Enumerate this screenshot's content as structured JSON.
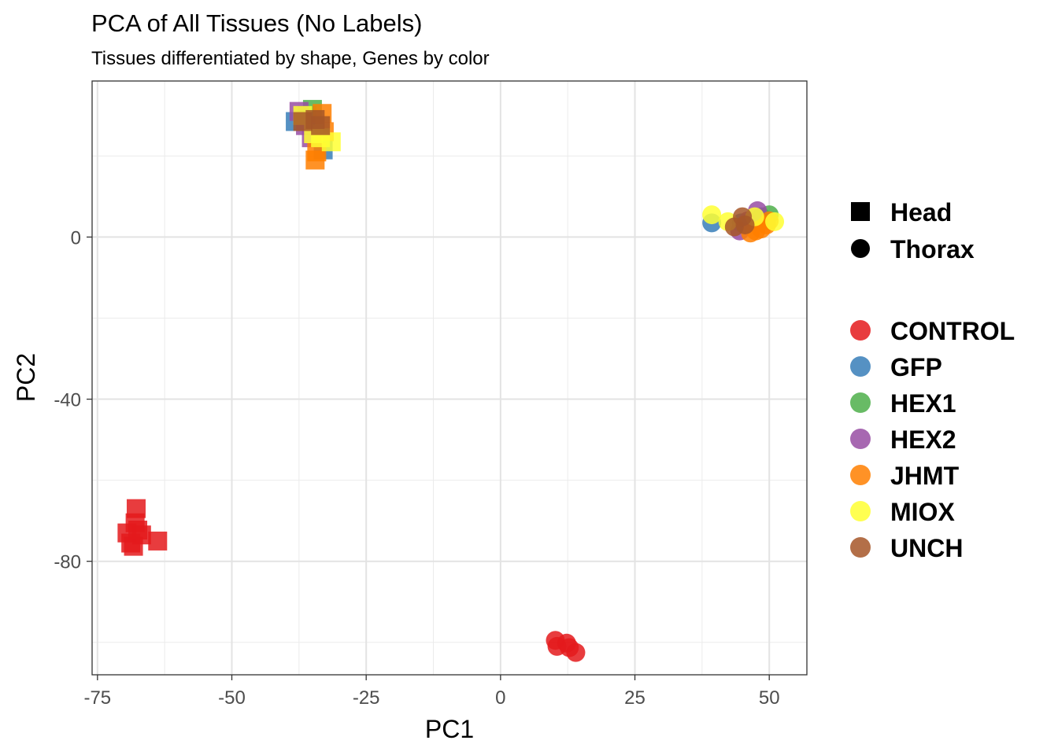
{
  "chart_data": {
    "type": "scatter",
    "title": "PCA of All Tissues (No Labels)",
    "subtitle": "Tissues differentiated by shape, Genes by color",
    "xlabel": "PC1",
    "ylabel": "PC2",
    "xlim": [
      -76,
      57
    ],
    "ylim": [
      -108,
      38.5
    ],
    "x_ticks": [
      -75,
      -50,
      -25,
      0,
      25,
      50
    ],
    "x_tick_labels": [
      "-75",
      "-50",
      "-25",
      "0",
      "25",
      "50"
    ],
    "y_ticks": [
      0,
      -40,
      -80
    ],
    "y_tick_labels": [
      "0",
      "-40",
      "-80"
    ],
    "x_minor_ticks": [
      -62.5,
      -37.5,
      -12.5,
      12.5,
      37.5
    ],
    "y_minor_ticks": [
      20,
      -20,
      -60,
      -100
    ],
    "grid": true,
    "legend_position": "right",
    "shape_legend": [
      {
        "label": "Head",
        "shape": "square"
      },
      {
        "label": "Thorax",
        "shape": "circle"
      }
    ],
    "color_legend": [
      {
        "label": "CONTROL",
        "color": "#E41A1C"
      },
      {
        "label": "GFP",
        "color": "#377EB8"
      },
      {
        "label": "HEX1",
        "color": "#4DAF4A"
      },
      {
        "label": "HEX2",
        "color": "#984EA3"
      },
      {
        "label": "JHMT",
        "color": "#FF7F00"
      },
      {
        "label": "MIOX",
        "color": "#FFFF33"
      },
      {
        "label": "UNCH",
        "color": "#A65628"
      }
    ],
    "points": [
      {
        "x": -69.5,
        "y": -73,
        "tissue": "Head",
        "gene": "CONTROL"
      },
      {
        "x": -67.8,
        "y": -67,
        "tissue": "Head",
        "gene": "CONTROL"
      },
      {
        "x": -68.0,
        "y": -70.5,
        "tissue": "Head",
        "gene": "CONTROL"
      },
      {
        "x": -66.8,
        "y": -73.5,
        "tissue": "Head",
        "gene": "CONTROL"
      },
      {
        "x": -68.8,
        "y": -75.5,
        "tissue": "Head",
        "gene": "CONTROL"
      },
      {
        "x": -68.3,
        "y": -76.3,
        "tissue": "Head",
        "gene": "CONTROL"
      },
      {
        "x": -67.5,
        "y": -72.3,
        "tissue": "Head",
        "gene": "CONTROL"
      },
      {
        "x": -63.8,
        "y": -75,
        "tissue": "Head",
        "gene": "CONTROL"
      },
      {
        "x": 10.2,
        "y": -99.5,
        "tissue": "Thorax",
        "gene": "CONTROL"
      },
      {
        "x": 10.5,
        "y": -101,
        "tissue": "Thorax",
        "gene": "CONTROL"
      },
      {
        "x": 12.3,
        "y": -100.2,
        "tissue": "Thorax",
        "gene": "CONTROL"
      },
      {
        "x": 12.8,
        "y": -101.3,
        "tissue": "Thorax",
        "gene": "CONTROL"
      },
      {
        "x": 14.0,
        "y": -102.5,
        "tissue": "Thorax",
        "gene": "CONTROL"
      },
      {
        "x": -38.2,
        "y": 28.5,
        "tissue": "Head",
        "gene": "GFP"
      },
      {
        "x": -33.0,
        "y": 21.5,
        "tissue": "Head",
        "gene": "GFP"
      },
      {
        "x": -35.0,
        "y": 31.5,
        "tissue": "Head",
        "gene": "HEX1"
      },
      {
        "x": -36.0,
        "y": 30.0,
        "tissue": "Head",
        "gene": "HEX1"
      },
      {
        "x": -37.5,
        "y": 31.0,
        "tissue": "Head",
        "gene": "HEX2"
      },
      {
        "x": -35.2,
        "y": 24.5,
        "tissue": "Head",
        "gene": "HEX2"
      },
      {
        "x": -36.3,
        "y": 27.5,
        "tissue": "Head",
        "gene": "HEX2"
      },
      {
        "x": -33.2,
        "y": 30.5,
        "tissue": "Head",
        "gene": "JHMT"
      },
      {
        "x": -34.5,
        "y": 19.0,
        "tissue": "Head",
        "gene": "JHMT"
      },
      {
        "x": -34.2,
        "y": 21.0,
        "tissue": "Head",
        "gene": "JHMT"
      },
      {
        "x": -32.8,
        "y": 26.0,
        "tissue": "Head",
        "gene": "JHMT"
      },
      {
        "x": -36.8,
        "y": 30.0,
        "tissue": "Head",
        "gene": "MIOX"
      },
      {
        "x": -34.8,
        "y": 25.5,
        "tissue": "Head",
        "gene": "MIOX"
      },
      {
        "x": -31.5,
        "y": 23.5,
        "tissue": "Head",
        "gene": "MIOX"
      },
      {
        "x": -33.5,
        "y": 24.5,
        "tissue": "Head",
        "gene": "MIOX"
      },
      {
        "x": -36.8,
        "y": 28.5,
        "tissue": "Head",
        "gene": "UNCH"
      },
      {
        "x": -34.5,
        "y": 29.0,
        "tissue": "Head",
        "gene": "UNCH"
      },
      {
        "x": -33.5,
        "y": 27.5,
        "tissue": "Head",
        "gene": "UNCH"
      },
      {
        "x": 39.3,
        "y": 3.5,
        "tissue": "Thorax",
        "gene": "GFP"
      },
      {
        "x": 44.8,
        "y": 3.5,
        "tissue": "Thorax",
        "gene": "GFP"
      },
      {
        "x": 50.0,
        "y": 5.5,
        "tissue": "Thorax",
        "gene": "HEX1"
      },
      {
        "x": 48.5,
        "y": 5.0,
        "tissue": "Thorax",
        "gene": "HEX1"
      },
      {
        "x": 47.8,
        "y": 6.5,
        "tissue": "Thorax",
        "gene": "HEX2"
      },
      {
        "x": 44.5,
        "y": 1.5,
        "tissue": "Thorax",
        "gene": "HEX2"
      },
      {
        "x": 46.0,
        "y": 4.0,
        "tissue": "Thorax",
        "gene": "HEX2"
      },
      {
        "x": 50.0,
        "y": 4.0,
        "tissue": "Thorax",
        "gene": "JHMT"
      },
      {
        "x": 46.5,
        "y": 1.0,
        "tissue": "Thorax",
        "gene": "JHMT"
      },
      {
        "x": 48.5,
        "y": 2.0,
        "tissue": "Thorax",
        "gene": "JHMT"
      },
      {
        "x": 47.5,
        "y": 1.5,
        "tissue": "Thorax",
        "gene": "JHMT"
      },
      {
        "x": 49.5,
        "y": 3.0,
        "tissue": "Thorax",
        "gene": "JHMT"
      },
      {
        "x": 39.3,
        "y": 5.5,
        "tissue": "Thorax",
        "gene": "MIOX"
      },
      {
        "x": 42.3,
        "y": 3.8,
        "tissue": "Thorax",
        "gene": "MIOX"
      },
      {
        "x": 47.3,
        "y": 5.0,
        "tissue": "Thorax",
        "gene": "MIOX"
      },
      {
        "x": 51.0,
        "y": 3.8,
        "tissue": "Thorax",
        "gene": "MIOX"
      },
      {
        "x": 43.5,
        "y": 2.5,
        "tissue": "Thorax",
        "gene": "UNCH"
      },
      {
        "x": 45.5,
        "y": 3.0,
        "tissue": "Thorax",
        "gene": "UNCH"
      },
      {
        "x": 45.0,
        "y": 5.0,
        "tissue": "Thorax",
        "gene": "UNCH"
      }
    ]
  }
}
